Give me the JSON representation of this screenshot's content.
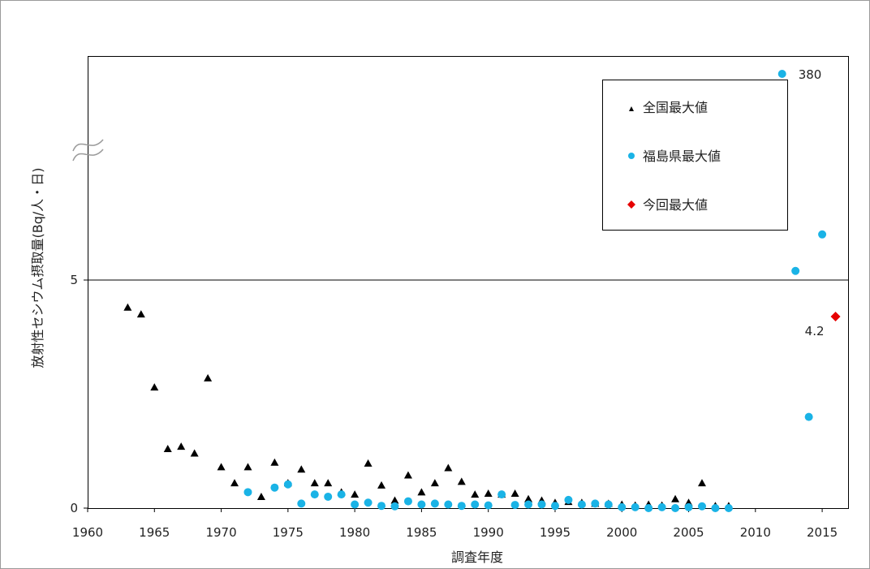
{
  "chart_data": {
    "type": "scatter",
    "title": "",
    "xlabel": "調査年度",
    "ylabel": "放射性セシウム摂取量(Bq/人・日)",
    "xlim": [
      1960,
      2017
    ],
    "x_ticks": [
      1960,
      1965,
      1970,
      1975,
      1980,
      1985,
      1990,
      1995,
      2000,
      2005,
      2010,
      2015
    ],
    "x_tick_labels": [
      "1960",
      "1965",
      "1970",
      "1975",
      "1980",
      "1985",
      "1990",
      "1995",
      "2000",
      "2005",
      "2010",
      "2015"
    ],
    "ylim": [
      0,
      5
    ],
    "y_ticks": [
      0,
      5
    ],
    "y_tick_labels": [
      "0",
      "5"
    ],
    "y_axis_break": true,
    "grid": false,
    "legend_position": "top-right",
    "series": [
      {
        "name": "全国最大値",
        "marker": "triangle",
        "color": "#000000",
        "points": [
          [
            1963,
            4.4
          ],
          [
            1964,
            4.25
          ],
          [
            1965,
            2.65
          ],
          [
            1966,
            1.3
          ],
          [
            1967,
            1.35
          ],
          [
            1968,
            1.2
          ],
          [
            1969,
            2.85
          ],
          [
            1970,
            0.9
          ],
          [
            1971,
            0.55
          ],
          [
            1972,
            0.9
          ],
          [
            1973,
            0.25
          ],
          [
            1974,
            1.0
          ],
          [
            1975,
            0.55
          ],
          [
            1976,
            0.85
          ],
          [
            1977,
            0.55
          ],
          [
            1978,
            0.55
          ],
          [
            1979,
            0.35
          ],
          [
            1980,
            0.3
          ],
          [
            1981,
            0.98
          ],
          [
            1982,
            0.5
          ],
          [
            1983,
            0.17
          ],
          [
            1984,
            0.72
          ],
          [
            1985,
            0.35
          ],
          [
            1986,
            0.55
          ],
          [
            1987,
            0.88
          ],
          [
            1988,
            0.58
          ],
          [
            1989,
            0.3
          ],
          [
            1990,
            0.32
          ],
          [
            1991,
            0.3
          ],
          [
            1992,
            0.32
          ],
          [
            1993,
            0.2
          ],
          [
            1994,
            0.17
          ],
          [
            1995,
            0.12
          ],
          [
            1996,
            0.14
          ],
          [
            1997,
            0.12
          ],
          [
            1998,
            0.1
          ],
          [
            1999,
            0.1
          ],
          [
            2000,
            0.08
          ],
          [
            2001,
            0.06
          ],
          [
            2002,
            0.08
          ],
          [
            2003,
            0.06
          ],
          [
            2004,
            0.2
          ],
          [
            2005,
            0.12
          ],
          [
            2006,
            0.55
          ],
          [
            2007,
            0.05
          ],
          [
            2008,
            0.05
          ]
        ]
      },
      {
        "name": "福島県最大値",
        "marker": "circle",
        "color": "#1AB3E6",
        "points": [
          [
            1972,
            0.35
          ],
          [
            1974,
            0.45
          ],
          [
            1975,
            0.52
          ],
          [
            1976,
            0.1
          ],
          [
            1977,
            0.3
          ],
          [
            1978,
            0.25
          ],
          [
            1979,
            0.3
          ],
          [
            1980,
            0.08
          ],
          [
            1981,
            0.12
          ],
          [
            1982,
            0.05
          ],
          [
            1983,
            0.04
          ],
          [
            1984,
            0.15
          ],
          [
            1985,
            0.08
          ],
          [
            1986,
            0.1
          ],
          [
            1987,
            0.08
          ],
          [
            1988,
            0.05
          ],
          [
            1989,
            0.08
          ],
          [
            1990,
            0.06
          ],
          [
            1991,
            0.3
          ],
          [
            1992,
            0.07
          ],
          [
            1993,
            0.08
          ],
          [
            1994,
            0.08
          ],
          [
            1995,
            0.05
          ],
          [
            1996,
            0.18
          ],
          [
            1997,
            0.08
          ],
          [
            1998,
            0.1
          ],
          [
            1999,
            0.08
          ],
          [
            2000,
            0.02
          ],
          [
            2001,
            0.02
          ],
          [
            2002,
            0.0
          ],
          [
            2003,
            0.02
          ],
          [
            2004,
            0.0
          ],
          [
            2005,
            0.02
          ],
          [
            2006,
            0.04
          ],
          [
            2007,
            0.0
          ],
          [
            2008,
            0.0
          ],
          [
            2013,
            5.2
          ],
          [
            2014,
            2.0
          ],
          [
            2015,
            6.0
          ]
        ],
        "above_break": [
          {
            "x": 2012,
            "y": 380,
            "label": "380"
          }
        ]
      },
      {
        "name": "今回最大値",
        "marker": "diamond",
        "color": "#E60000",
        "points": [
          [
            2016,
            4.2
          ]
        ],
        "labels": [
          {
            "x": 2016,
            "y": 4.2,
            "text": "4.2"
          }
        ]
      }
    ]
  }
}
